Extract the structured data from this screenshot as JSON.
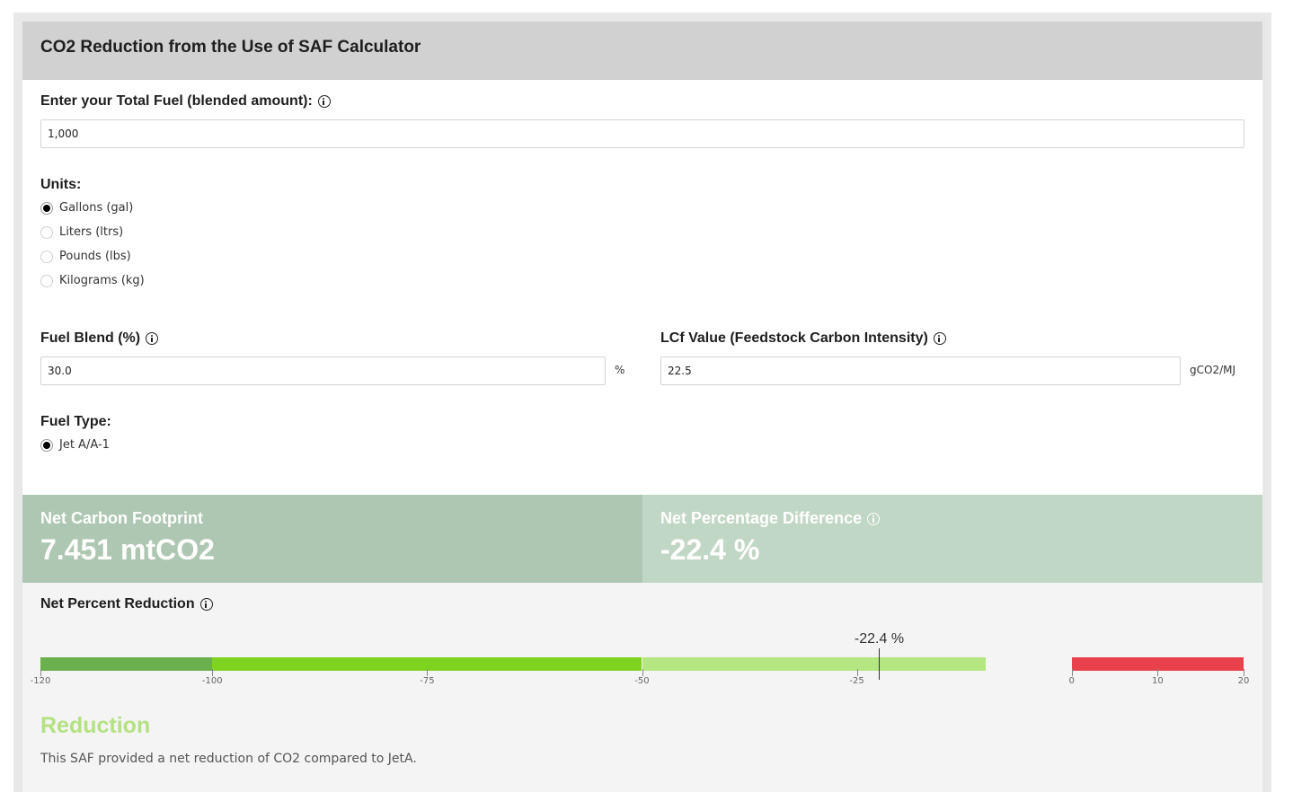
{
  "calculator": {
    "title": "CO2 Reduction from the Use of SAF Calculator",
    "total_fuel": {
      "label": "Enter your Total Fuel (blended amount):",
      "value": "1,000",
      "info_icon": "info-icon"
    },
    "units": {
      "label": "Units:",
      "options": [
        {
          "label": "Gallons (gal)",
          "checked": true
        },
        {
          "label": "Liters (ltrs)",
          "checked": false
        },
        {
          "label": "Pounds (lbs)",
          "checked": false
        },
        {
          "label": "Kilograms (kg)",
          "checked": false
        }
      ]
    },
    "fuel_blend": {
      "label": "Fuel Blend (%)",
      "value": "30.0",
      "unit": "%"
    },
    "lcf": {
      "label": "LCf Value (Feedstock Carbon Intensity)",
      "value": "22.5",
      "unit": "gCO2/MJ"
    },
    "fuel_type": {
      "label": "Fuel Type:",
      "options": [
        {
          "label": "Jet A/A-1",
          "checked": true
        }
      ]
    }
  },
  "results": {
    "net_carbon_footprint": {
      "label": "Net Carbon Footprint",
      "value": "7.451 mtCO2"
    },
    "net_percentage_difference": {
      "label": "Net Percentage Difference",
      "value": "-22.4 %"
    }
  },
  "gauge": {
    "label": "Net Percent Reduction",
    "marker_value": -22.4,
    "marker_label": "-22.4 %",
    "min": -120,
    "max": 20,
    "segments": [
      {
        "from": -120,
        "to": -100,
        "color": "#6ab04c"
      },
      {
        "from": -100,
        "to": -50,
        "color": "#7ed321"
      },
      {
        "from": -50,
        "to": -10,
        "color": "#b4e682"
      },
      {
        "from": 0,
        "to": 20,
        "color": "#e8414c"
      }
    ],
    "ticks": [
      "-120",
      "-100",
      "-75",
      "-50",
      "-25",
      "0",
      "10",
      "20"
    ]
  },
  "summary": {
    "title": "Reduction",
    "text": "This SAF provided a net reduction of CO2 compared to JetA.",
    "title_color": "#b4e282"
  }
}
